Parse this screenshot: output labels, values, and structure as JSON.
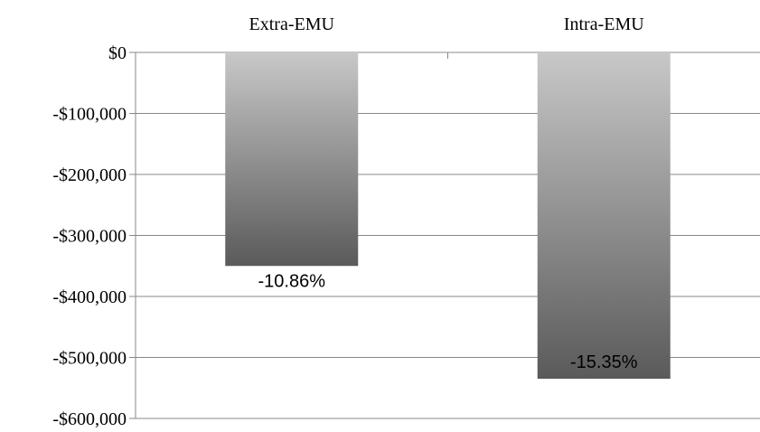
{
  "chart_data": {
    "type": "bar",
    "categories": [
      "Extra-EMU",
      "Intra-EMU"
    ],
    "values": [
      -350000,
      -535000
    ],
    "data_labels": [
      "-10.86%",
      "-15.35%"
    ],
    "y_ticks": [
      "$0",
      "-$100,000",
      "-$200,000",
      "-$300,000",
      "-$400,000",
      "-$500,000",
      "-$600,000"
    ],
    "y_tick_values": [
      0,
      -100000,
      -200000,
      -300000,
      -400000,
      -500000,
      -600000
    ],
    "ylim": [
      -600000,
      0
    ],
    "title": "",
    "xlabel": "",
    "ylabel": "",
    "x_axis_position": "top",
    "grid": true,
    "legend": "none",
    "colors": {
      "bar_top": "#c8c8c8",
      "bar_bottom": "#5a5a5a",
      "gridline": "#888888",
      "axis": "#888888"
    }
  }
}
